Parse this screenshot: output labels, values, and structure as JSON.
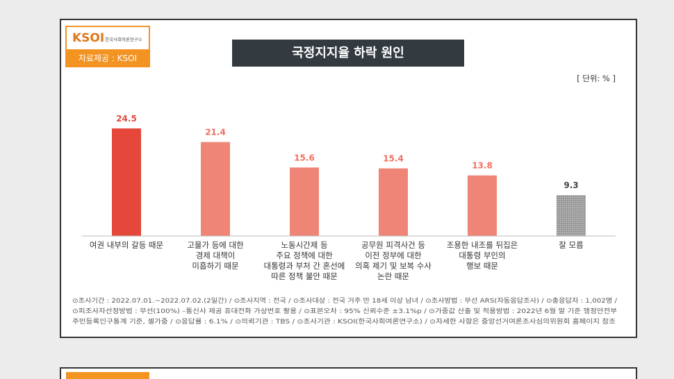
{
  "logo": {
    "name": "KSOI",
    "org": "한국사회여론연구소",
    "source": "자료제공 : KSOI"
  },
  "chart_data": {
    "type": "bar",
    "title": "국정지지율 하락 원인",
    "unit": "[ 단위: % ]",
    "categories": [
      "여권 내부의 갈등 때문",
      "고물가 등에 대한\n경제 대책이\n미흡하기 때문",
      "노동시간제 등\n주요 정책에 대한\n대통령과 부처 간 혼선에\n따른 정책 불안 때문",
      "공무원 피격사건 등\n이전 정부에 대한\n의혹 제기 및 보복 수사\n논란 때문",
      "조용한 내조를 뒤집은\n대통령 부인의\n행보 때문",
      "잘 모름"
    ],
    "values": [
      24.5,
      21.4,
      15.6,
      15.4,
      13.8,
      9.3
    ],
    "colors": [
      "#e5473a",
      "#ef8577",
      "#ef8577",
      "#ef8577",
      "#ef8577",
      "#9a9a9a"
    ],
    "footnote": [
      "⊙조사기간 : 2022.07.01.~2022.07.02.(2일간) / ⊙조사지역 : 전국 / ⊙조사대상 : 전국 거주 만 18세 이상 남녀 / ⊙조사방법 : 무선 ARS(자동응답조사) / ⊙총응답자 : 1,002명 /",
      "⊙피조사자선정방법 : 무선(100%) –통신사 제공 휴대전화 가상번호 활용 / ⊙표본오차 : 95% 신뢰수준 ±3.1%p / ⊙가중값 산출 및 적용방법 : 2022년 6월 말 기준 행정안전부",
      "주민등록인구통계 기준, 셀가중 / ⊙응답률 : 6.1% / ⊙의뢰기관 : TBS / ⊙조사기관 : KSOI(한국사회여론연구소) / ⊙자세한 사항은 중앙선거여론조사심의위원회 홈페이지 참조"
    ]
  }
}
